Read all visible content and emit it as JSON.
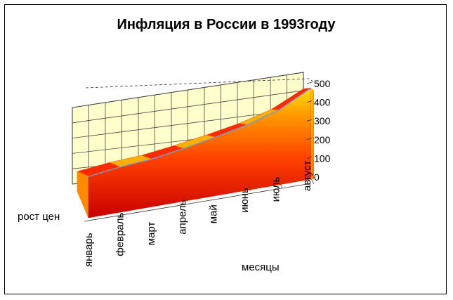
{
  "chart_data": {
    "type": "area",
    "title": "Инфляция в России в 1993году",
    "ylabel": "рост цен",
    "xlabel": "месяцы",
    "categories": [
      "январь",
      "февраль",
      "март",
      "апрель",
      "май",
      "июнь",
      "июль",
      "август"
    ],
    "values": [
      75,
      110,
      135,
      175,
      220,
      270,
      335,
      440
    ],
    "ylim": [
      0,
      500
    ],
    "yticks": [
      0,
      100,
      200,
      300,
      400,
      500
    ],
    "grid": true,
    "legend": "none",
    "three_d": true
  },
  "colors": {
    "wall": "#ffffcc",
    "grid": "#444444",
    "area_light": "#ffe000",
    "area_mid": "#ff5500",
    "area_dark": "#cc0000",
    "edge": "#7799cc"
  }
}
